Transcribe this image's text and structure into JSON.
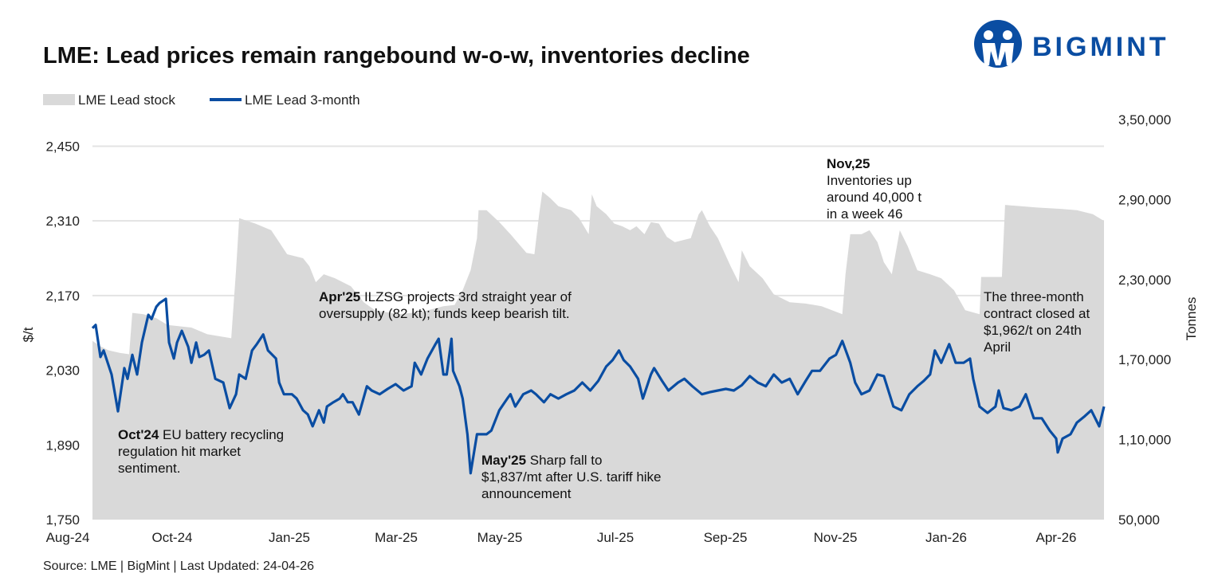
{
  "title": "LME: Lead prices remain rangebound w-o-w, inventories decline",
  "logo": {
    "text": "BIGMINT",
    "color": "#0a4da2"
  },
  "source": "Source: LME | BigMint | Last Updated: 24-04-26",
  "chart_data": {
    "type": "line+area",
    "title": "LME: Lead prices remain rangebound w-o-w, inventories decline",
    "ylabel_left": "$/t",
    "ylabel_right": "Tonnes",
    "ylim_left": [
      1750,
      2500
    ],
    "ylim_right": [
      50000,
      350000
    ],
    "yticks_left": [
      "1,750",
      "1,890",
      "2,030",
      "2,170",
      "2,310",
      "2,450"
    ],
    "yticks_left_values": [
      1750,
      1890,
      2030,
      2170,
      2310,
      2450
    ],
    "yticks_right": [
      "50,000",
      "1,10,000",
      "1,70,000",
      "2,30,000",
      "2,90,000",
      "3,50,000"
    ],
    "yticks_right_values": [
      50000,
      110000,
      170000,
      230000,
      290000,
      350000
    ],
    "xticks": [
      "Aug-24",
      "Oct-24",
      "Jan-25",
      "Mar-25",
      "May-25",
      "Jul-25",
      "Sep-25",
      "Nov-25",
      "Jan-26",
      "Apr-26"
    ],
    "grid": true,
    "legend_placement": "top-left",
    "colors": {
      "stock": "#d9d9d9",
      "price": "#0a4da2"
    },
    "legend": [
      "LME Lead stock",
      "LME Lead 3-month"
    ],
    "stock": {
      "name": "LME Lead stock",
      "axis": "right",
      "type": "area",
      "x": [
        "2024-07-29",
        "2024-08-03",
        "2024-08-08",
        "2024-08-15",
        "2024-08-21",
        "2024-08-23",
        "2024-08-30",
        "2024-09-07",
        "2024-09-14",
        "2024-09-29",
        "2024-10-09",
        "2024-10-24",
        "2024-10-27",
        "2024-10-29",
        "2024-11-03",
        "2024-11-08",
        "2024-11-18",
        "2024-11-23",
        "2024-11-28",
        "2024-12-08",
        "2024-12-12",
        "2024-12-16",
        "2024-12-21",
        "2024-12-28",
        "2025-01-07",
        "2025-01-15",
        "2025-01-22",
        "2025-02-06",
        "2025-02-21",
        "2025-03-06",
        "2025-03-13",
        "2025-03-18",
        "2025-03-23",
        "2025-03-27",
        "2025-03-28",
        "2025-04-02",
        "2025-04-10",
        "2025-04-17",
        "2025-04-27",
        "2025-05-02",
        "2025-05-05",
        "2025-05-07",
        "2025-05-12",
        "2025-05-17",
        "2025-05-25",
        "2025-05-30",
        "2025-06-05",
        "2025-06-07",
        "2025-06-10",
        "2025-06-16",
        "2025-06-21",
        "2025-06-26",
        "2025-07-01",
        "2025-07-05",
        "2025-07-10",
        "2025-07-14",
        "2025-07-19",
        "2025-07-24",
        "2025-07-29",
        "2025-08-08",
        "2025-08-13",
        "2025-08-15",
        "2025-08-20",
        "2025-08-25",
        "2025-09-02",
        "2025-09-07",
        "2025-09-09",
        "2025-09-14",
        "2025-09-22",
        "2025-09-29",
        "2025-10-09",
        "2025-10-19",
        "2025-10-29",
        "2025-11-11",
        "2025-11-13",
        "2025-11-16",
        "2025-11-23",
        "2025-11-28",
        "2025-12-03",
        "2025-12-07",
        "2025-12-12",
        "2025-12-17",
        "2025-12-22",
        "2025-12-28",
        "2026-01-05",
        "2026-01-12",
        "2026-01-20",
        "2026-01-27",
        "2026-02-05",
        "2026-02-06",
        "2026-02-19",
        "2026-02-21",
        "2026-03-03",
        "2026-03-13",
        "2026-03-28",
        "2026-04-07",
        "2026-04-17",
        "2026-04-24"
      ],
      "values": [
        184000,
        180000,
        177000,
        175000,
        174000,
        205000,
        204000,
        201000,
        196000,
        194000,
        189000,
        186000,
        237000,
        276000,
        274000,
        272000,
        267000,
        258000,
        249000,
        246000,
        240000,
        228000,
        234000,
        231000,
        225000,
        213000,
        207000,
        204000,
        206000,
        210000,
        211000,
        222000,
        237000,
        261000,
        282000,
        282000,
        273000,
        264000,
        250000,
        249000,
        279000,
        296000,
        291000,
        285000,
        282000,
        276000,
        264000,
        294000,
        285000,
        279000,
        272000,
        270000,
        267000,
        270000,
        264000,
        273000,
        272000,
        262000,
        258000,
        261000,
        279000,
        282000,
        270000,
        261000,
        240000,
        228000,
        252000,
        240000,
        231000,
        219000,
        213000,
        212000,
        210000,
        204000,
        234000,
        264000,
        264000,
        267000,
        258000,
        243000,
        234000,
        267000,
        255000,
        237000,
        234000,
        231000,
        222000,
        207000,
        204000,
        232000,
        232000,
        286000,
        285000,
        284000,
        283000,
        282000,
        279000,
        274000
      ]
    },
    "price": {
      "name": "LME Lead 3-month",
      "axis": "left",
      "type": "line",
      "x": [
        "2024-07-29",
        "2024-07-31",
        "2024-08-03",
        "2024-08-05",
        "2024-08-10",
        "2024-08-14",
        "2024-08-18",
        "2024-08-20",
        "2024-08-23",
        "2024-08-26",
        "2024-08-29",
        "2024-09-02",
        "2024-09-04",
        "2024-09-07",
        "2024-09-09",
        "2024-09-13",
        "2024-09-15",
        "2024-09-18",
        "2024-09-20",
        "2024-09-23",
        "2024-09-27",
        "2024-09-29",
        "2024-10-02",
        "2024-10-04",
        "2024-10-07",
        "2024-10-10",
        "2024-10-14",
        "2024-10-19",
        "2024-10-23",
        "2024-10-27",
        "2024-10-29",
        "2024-11-02",
        "2024-11-06",
        "2024-11-09",
        "2024-11-13",
        "2024-11-16",
        "2024-11-21",
        "2024-11-23",
        "2024-11-26",
        "2024-12-01",
        "2024-12-04",
        "2024-12-08",
        "2024-12-11",
        "2024-12-14",
        "2024-12-18",
        "2024-12-21",
        "2024-12-23",
        "2024-12-27",
        "2024-12-31",
        "2025-01-02",
        "2025-01-05",
        "2025-01-08",
        "2025-01-12",
        "2025-01-17",
        "2025-01-20",
        "2025-01-25",
        "2025-01-30",
        "2025-02-04",
        "2025-02-09",
        "2025-02-14",
        "2025-02-16",
        "2025-02-20",
        "2025-02-24",
        "2025-03-01",
        "2025-03-03",
        "2025-03-06",
        "2025-03-08",
        "2025-03-11",
        "2025-03-12",
        "2025-03-16",
        "2025-03-18",
        "2025-03-21",
        "2025-03-23",
        "2025-03-27",
        "2025-04-02",
        "2025-04-05",
        "2025-04-10",
        "2025-04-15",
        "2025-04-17",
        "2025-04-20",
        "2025-04-25",
        "2025-04-30",
        "2025-05-03",
        "2025-05-08",
        "2025-05-12",
        "2025-05-17",
        "2025-05-22",
        "2025-05-27",
        "2025-06-01",
        "2025-06-06",
        "2025-06-11",
        "2025-06-16",
        "2025-06-20",
        "2025-06-24",
        "2025-06-27",
        "2025-07-01",
        "2025-07-06",
        "2025-07-09",
        "2025-07-14",
        "2025-07-16",
        "2025-07-21",
        "2025-07-25",
        "2025-07-31",
        "2025-08-04",
        "2025-08-09",
        "2025-08-15",
        "2025-08-20",
        "2025-08-25",
        "2025-08-30",
        "2025-09-04",
        "2025-09-09",
        "2025-09-14",
        "2025-09-19",
        "2025-09-24",
        "2025-09-29",
        "2025-10-04",
        "2025-10-09",
        "2025-10-14",
        "2025-10-19",
        "2025-10-23",
        "2025-10-28",
        "2025-11-03",
        "2025-11-07",
        "2025-11-11",
        "2025-11-16",
        "2025-11-19",
        "2025-11-23",
        "2025-11-28",
        "2025-12-03",
        "2025-12-07",
        "2025-12-13",
        "2025-12-18",
        "2025-12-23",
        "2025-12-28",
        "2026-01-01",
        "2026-01-05",
        "2026-01-08",
        "2026-01-12",
        "2026-01-17",
        "2026-01-21",
        "2026-01-26",
        "2026-01-30",
        "2026-02-01",
        "2026-02-05",
        "2026-02-10",
        "2026-02-15",
        "2026-02-17",
        "2026-02-20",
        "2026-02-25",
        "2026-03-02",
        "2026-03-06",
        "2026-03-11",
        "2026-03-16",
        "2026-03-21",
        "2026-03-25",
        "2026-03-26",
        "2026-03-29",
        "2026-04-03",
        "2026-04-07",
        "2026-04-12",
        "2026-04-16",
        "2026-04-21",
        "2026-04-24"
      ],
      "values": [
        2109,
        2115,
        2055,
        2067,
        2022,
        1953,
        2034,
        2014,
        2059,
        2022,
        2082,
        2134,
        2126,
        2149,
        2156,
        2164,
        2082,
        2052,
        2082,
        2104,
        2074,
        2044,
        2082,
        2055,
        2059,
        2067,
        2014,
        2007,
        1959,
        1985,
        2022,
        2014,
        2067,
        2079,
        2097,
        2067,
        2052,
        2007,
        1985,
        1985,
        1977,
        1955,
        1947,
        1925,
        1955,
        1932,
        1962,
        1970,
        1977,
        1985,
        1970,
        1970,
        1947,
        2000,
        1992,
        1985,
        1995,
        2004,
        1992,
        2000,
        2044,
        2022,
        2052,
        2079,
        2089,
        2022,
        2022,
        2089,
        2029,
        2000,
        1977,
        1910,
        1837,
        1910,
        1910,
        1917,
        1955,
        1977,
        1985,
        1962,
        1985,
        1992,
        1985,
        1970,
        1985,
        1977,
        1985,
        1992,
        2007,
        1992,
        2010,
        2037,
        2049,
        2067,
        2049,
        2037,
        2014,
        1977,
        2022,
        2034,
        2010,
        1992,
        2007,
        2014,
        2000,
        1985,
        1989,
        1992,
        1995,
        1992,
        2002,
        2019,
        2007,
        2000,
        2022,
        2007,
        2014,
        1985,
        2010,
        2029,
        2029,
        2052,
        2059,
        2085,
        2044,
        2007,
        1985,
        1992,
        2022,
        2019,
        1962,
        1955,
        1985,
        2000,
        2010,
        2022,
        2067,
        2044,
        2079,
        2044,
        2044,
        2052,
        2014,
        1962,
        1950,
        1962,
        1992,
        1959,
        1955,
        1962,
        1985,
        1940,
        1940,
        1917,
        1902,
        1876,
        1902,
        1910,
        1932,
        1944,
        1955,
        1925,
        1962
      ]
    },
    "annotations": [
      {
        "bold": "Oct'24",
        "lines": [
          " EU battery recycling",
          "regulation hit market",
          "sentiment."
        ]
      },
      {
        "bold": "Apr'25",
        "lines": [
          " ILZSG projects 3rd straight year of",
          "oversupply (82 kt); funds keep bearish tilt."
        ]
      },
      {
        "bold": "May'25",
        "lines": [
          " Sharp fall to",
          "$1,837/mt after U.S. tariff hike",
          "announcement"
        ]
      },
      {
        "bold": "Nov,25",
        "lines": [
          "",
          "Inventories up",
          "around 40,000 t",
          "in a week 46"
        ]
      },
      {
        "bold": "",
        "lines": [
          "The three-month",
          "contract closed at",
          "$1,962/t on 24th",
          "April"
        ]
      }
    ]
  }
}
